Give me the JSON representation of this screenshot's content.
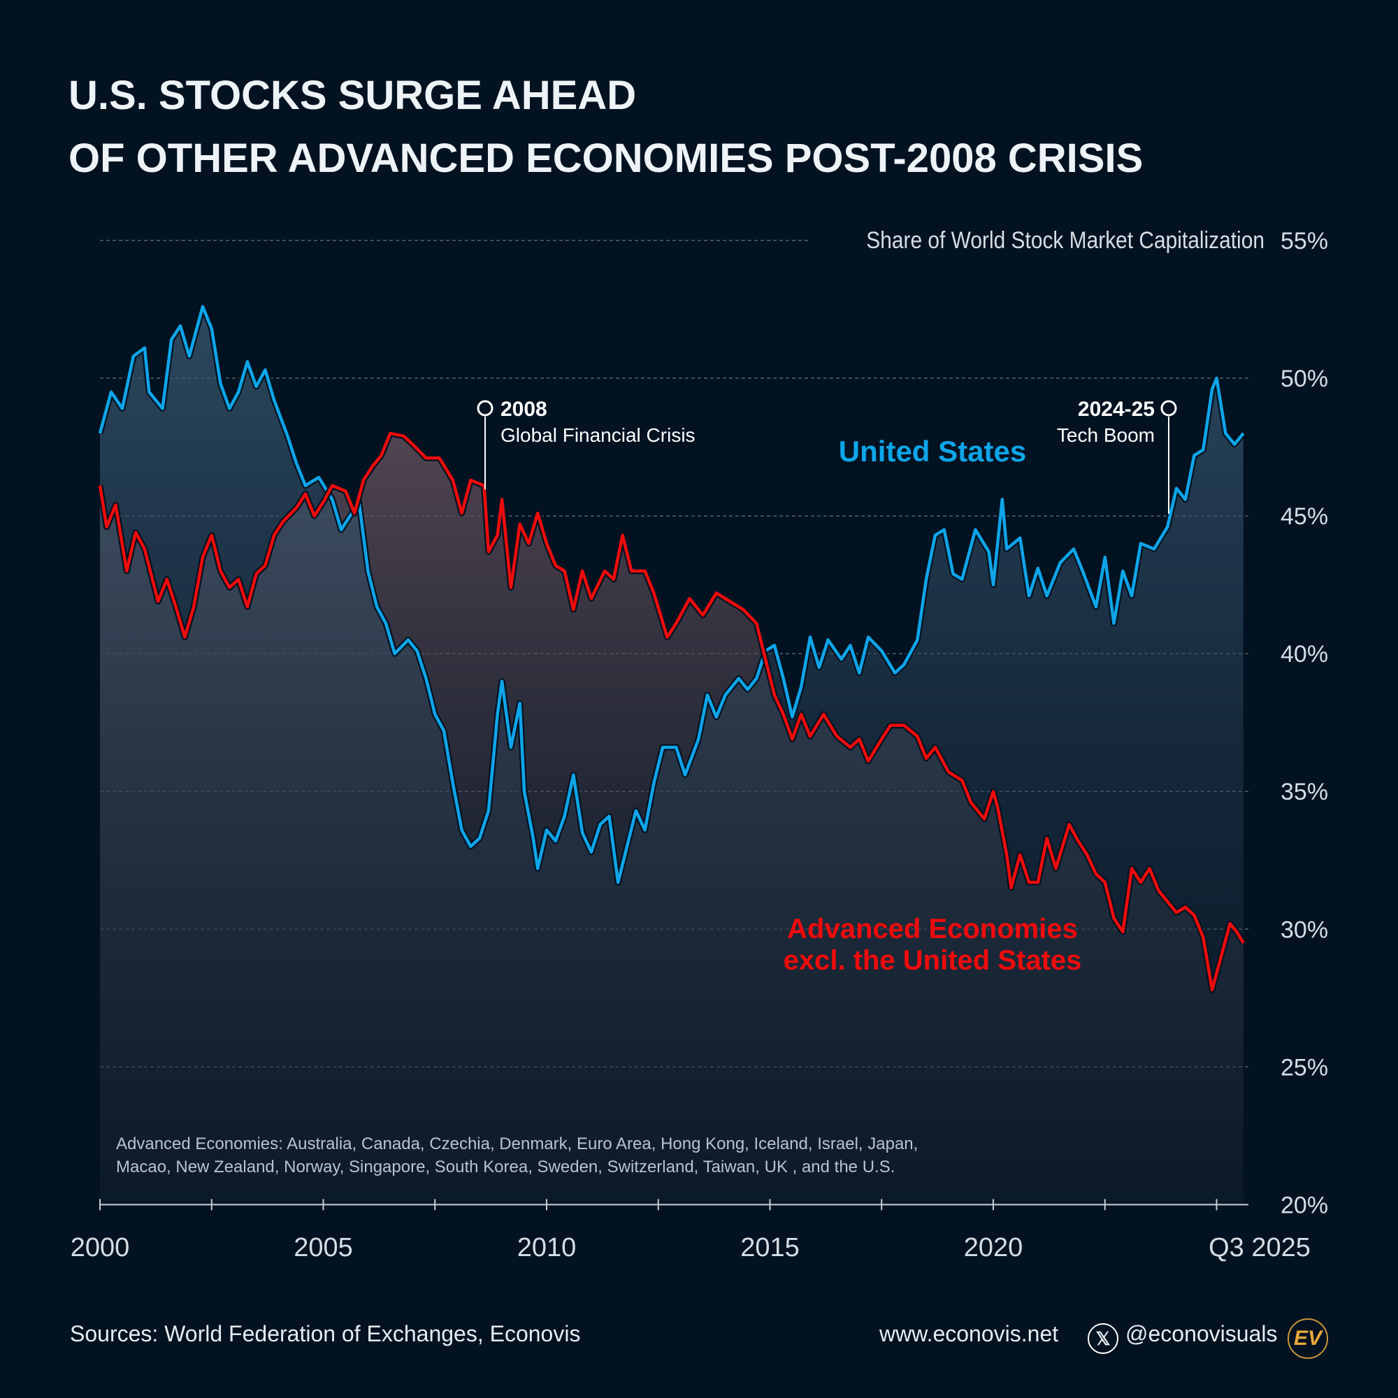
{
  "title": {
    "line1": "U.S. STOCKS SURGE AHEAD",
    "line2": "OF OTHER ADVANCED ECONOMIES POST-2008 CRISIS"
  },
  "chart_data": {
    "type": "line",
    "ylabel": "Share of World Stock Market Capitalization",
    "ylim": [
      20,
      55
    ],
    "y_ticks": [
      "20%",
      "25%",
      "30%",
      "35%",
      "40%",
      "45%",
      "50%",
      "55%"
    ],
    "x_range": [
      2000,
      2025.6
    ],
    "x_ticks": [
      "2000",
      "2005",
      "2010",
      "2015",
      "2020",
      "Q3 2025"
    ],
    "grid": true,
    "series": [
      {
        "name": "United States",
        "color": "#0ea5e9",
        "points": [
          [
            2000.0,
            48.0
          ],
          [
            2000.25,
            49.5
          ],
          [
            2000.5,
            48.9
          ],
          [
            2000.75,
            50.8
          ],
          [
            2001.0,
            51.1
          ],
          [
            2001.1,
            49.5
          ],
          [
            2001.4,
            48.9
          ],
          [
            2001.6,
            51.4
          ],
          [
            2001.8,
            51.9
          ],
          [
            2002.0,
            50.8
          ],
          [
            2002.3,
            52.6
          ],
          [
            2002.5,
            51.8
          ],
          [
            2002.7,
            49.8
          ],
          [
            2002.9,
            48.9
          ],
          [
            2003.1,
            49.5
          ],
          [
            2003.3,
            50.6
          ],
          [
            2003.5,
            49.7
          ],
          [
            2003.7,
            50.3
          ],
          [
            2003.9,
            49.2
          ],
          [
            2004.2,
            47.9
          ],
          [
            2004.4,
            46.9
          ],
          [
            2004.6,
            46.1
          ],
          [
            2004.9,
            46.4
          ],
          [
            2005.2,
            45.6
          ],
          [
            2005.4,
            44.5
          ],
          [
            2005.6,
            45.0
          ],
          [
            2005.8,
            45.5
          ],
          [
            2006.0,
            43.0
          ],
          [
            2006.2,
            41.7
          ],
          [
            2006.4,
            41.1
          ],
          [
            2006.6,
            40.0
          ],
          [
            2006.9,
            40.5
          ],
          [
            2007.1,
            40.1
          ],
          [
            2007.3,
            39.1
          ],
          [
            2007.5,
            37.8
          ],
          [
            2007.7,
            37.2
          ],
          [
            2007.9,
            35.3
          ],
          [
            2008.1,
            33.6
          ],
          [
            2008.3,
            33.0
          ],
          [
            2008.5,
            33.3
          ],
          [
            2008.7,
            34.3
          ],
          [
            2008.9,
            37.8
          ],
          [
            2009.0,
            39.0
          ],
          [
            2009.2,
            36.6
          ],
          [
            2009.4,
            38.2
          ],
          [
            2009.5,
            35.0
          ],
          [
            2009.7,
            33.3
          ],
          [
            2009.8,
            32.2
          ],
          [
            2010.0,
            33.6
          ],
          [
            2010.2,
            33.2
          ],
          [
            2010.4,
            34.1
          ],
          [
            2010.6,
            35.6
          ],
          [
            2010.8,
            33.5
          ],
          [
            2011.0,
            32.8
          ],
          [
            2011.2,
            33.8
          ],
          [
            2011.4,
            34.1
          ],
          [
            2011.6,
            31.7
          ],
          [
            2011.8,
            33.0
          ],
          [
            2012.0,
            34.3
          ],
          [
            2012.2,
            33.6
          ],
          [
            2012.4,
            35.3
          ],
          [
            2012.6,
            36.6
          ],
          [
            2012.9,
            36.6
          ],
          [
            2013.1,
            35.6
          ],
          [
            2013.4,
            36.9
          ],
          [
            2013.6,
            38.5
          ],
          [
            2013.8,
            37.7
          ],
          [
            2014.0,
            38.5
          ],
          [
            2014.3,
            39.1
          ],
          [
            2014.5,
            38.7
          ],
          [
            2014.7,
            39.1
          ],
          [
            2014.9,
            40.1
          ],
          [
            2015.1,
            40.3
          ],
          [
            2015.3,
            39.1
          ],
          [
            2015.5,
            37.7
          ],
          [
            2015.7,
            38.8
          ],
          [
            2015.9,
            40.6
          ],
          [
            2016.1,
            39.5
          ],
          [
            2016.3,
            40.5
          ],
          [
            2016.6,
            39.8
          ],
          [
            2016.8,
            40.3
          ],
          [
            2017.0,
            39.3
          ],
          [
            2017.2,
            40.6
          ],
          [
            2017.5,
            40.1
          ],
          [
            2017.8,
            39.3
          ],
          [
            2018.0,
            39.6
          ],
          [
            2018.3,
            40.5
          ],
          [
            2018.5,
            42.7
          ],
          [
            2018.7,
            44.3
          ],
          [
            2018.9,
            44.5
          ],
          [
            2019.1,
            42.9
          ],
          [
            2019.3,
            42.7
          ],
          [
            2019.6,
            44.5
          ],
          [
            2019.9,
            43.7
          ],
          [
            2020.0,
            42.5
          ],
          [
            2020.2,
            45.6
          ],
          [
            2020.3,
            43.8
          ],
          [
            2020.6,
            44.2
          ],
          [
            2020.8,
            42.1
          ],
          [
            2021.0,
            43.1
          ],
          [
            2021.2,
            42.1
          ],
          [
            2021.5,
            43.3
          ],
          [
            2021.8,
            43.8
          ],
          [
            2022.0,
            43.0
          ],
          [
            2022.3,
            41.7
          ],
          [
            2022.5,
            43.5
          ],
          [
            2022.7,
            41.1
          ],
          [
            2022.9,
            43.0
          ],
          [
            2023.1,
            42.1
          ],
          [
            2023.3,
            44.0
          ],
          [
            2023.6,
            43.8
          ],
          [
            2023.9,
            44.6
          ],
          [
            2024.1,
            46.0
          ],
          [
            2024.3,
            45.6
          ],
          [
            2024.5,
            47.2
          ],
          [
            2024.7,
            47.4
          ],
          [
            2024.9,
            49.6
          ],
          [
            2025.0,
            50.0
          ],
          [
            2025.2,
            48.0
          ],
          [
            2025.4,
            47.6
          ],
          [
            2025.6,
            48.0
          ]
        ]
      },
      {
        "name": "Advanced Economies excl. the United States",
        "color": "#ef0c0c",
        "points": [
          [
            2000.0,
            46.1
          ],
          [
            2000.15,
            44.6
          ],
          [
            2000.35,
            45.4
          ],
          [
            2000.6,
            43.0
          ],
          [
            2000.8,
            44.4
          ],
          [
            2001.0,
            43.8
          ],
          [
            2001.3,
            41.9
          ],
          [
            2001.5,
            42.7
          ],
          [
            2001.7,
            41.7
          ],
          [
            2001.9,
            40.6
          ],
          [
            2002.1,
            41.7
          ],
          [
            2002.3,
            43.5
          ],
          [
            2002.5,
            44.3
          ],
          [
            2002.7,
            43.0
          ],
          [
            2002.9,
            42.4
          ],
          [
            2003.1,
            42.7
          ],
          [
            2003.3,
            41.7
          ],
          [
            2003.5,
            42.9
          ],
          [
            2003.7,
            43.2
          ],
          [
            2003.9,
            44.3
          ],
          [
            2004.1,
            44.8
          ],
          [
            2004.4,
            45.3
          ],
          [
            2004.6,
            45.8
          ],
          [
            2004.8,
            45.0
          ],
          [
            2005.0,
            45.5
          ],
          [
            2005.2,
            46.1
          ],
          [
            2005.5,
            45.9
          ],
          [
            2005.7,
            45.1
          ],
          [
            2005.9,
            46.3
          ],
          [
            2006.1,
            46.8
          ],
          [
            2006.3,
            47.2
          ],
          [
            2006.5,
            48.0
          ],
          [
            2006.8,
            47.9
          ],
          [
            2007.0,
            47.6
          ],
          [
            2007.3,
            47.1
          ],
          [
            2007.6,
            47.1
          ],
          [
            2007.9,
            46.3
          ],
          [
            2008.1,
            45.1
          ],
          [
            2008.3,
            46.3
          ],
          [
            2008.6,
            46.1
          ],
          [
            2008.7,
            43.7
          ],
          [
            2008.9,
            44.3
          ],
          [
            2009.0,
            45.6
          ],
          [
            2009.2,
            42.4
          ],
          [
            2009.4,
            44.7
          ],
          [
            2009.6,
            44.0
          ],
          [
            2009.8,
            45.1
          ],
          [
            2010.0,
            44.0
          ],
          [
            2010.2,
            43.2
          ],
          [
            2010.4,
            43.0
          ],
          [
            2010.6,
            41.6
          ],
          [
            2010.8,
            43.0
          ],
          [
            2011.0,
            42.0
          ],
          [
            2011.3,
            43.0
          ],
          [
            2011.5,
            42.7
          ],
          [
            2011.7,
            44.3
          ],
          [
            2011.9,
            43.0
          ],
          [
            2012.2,
            43.0
          ],
          [
            2012.4,
            42.2
          ],
          [
            2012.7,
            40.6
          ],
          [
            2012.9,
            41.1
          ],
          [
            2013.2,
            42.0
          ],
          [
            2013.5,
            41.4
          ],
          [
            2013.8,
            42.2
          ],
          [
            2014.1,
            41.9
          ],
          [
            2014.4,
            41.6
          ],
          [
            2014.7,
            41.1
          ],
          [
            2014.9,
            39.8
          ],
          [
            2015.1,
            38.5
          ],
          [
            2015.3,
            37.8
          ],
          [
            2015.5,
            36.9
          ],
          [
            2015.7,
            37.8
          ],
          [
            2015.9,
            37.0
          ],
          [
            2016.2,
            37.8
          ],
          [
            2016.5,
            37.0
          ],
          [
            2016.8,
            36.6
          ],
          [
            2017.0,
            36.9
          ],
          [
            2017.2,
            36.1
          ],
          [
            2017.5,
            36.9
          ],
          [
            2017.7,
            37.4
          ],
          [
            2018.0,
            37.4
          ],
          [
            2018.3,
            37.0
          ],
          [
            2018.5,
            36.2
          ],
          [
            2018.7,
            36.6
          ],
          [
            2019.0,
            35.7
          ],
          [
            2019.3,
            35.4
          ],
          [
            2019.5,
            34.6
          ],
          [
            2019.8,
            34.0
          ],
          [
            2020.0,
            35.0
          ],
          [
            2020.1,
            34.4
          ],
          [
            2020.3,
            32.7
          ],
          [
            2020.4,
            31.5
          ],
          [
            2020.6,
            32.7
          ],
          [
            2020.8,
            31.7
          ],
          [
            2021.0,
            31.7
          ],
          [
            2021.2,
            33.3
          ],
          [
            2021.4,
            32.2
          ],
          [
            2021.7,
            33.8
          ],
          [
            2021.9,
            33.2
          ],
          [
            2022.1,
            32.7
          ],
          [
            2022.3,
            32.0
          ],
          [
            2022.5,
            31.7
          ],
          [
            2022.7,
            30.4
          ],
          [
            2022.9,
            29.9
          ],
          [
            2023.1,
            32.2
          ],
          [
            2023.3,
            31.7
          ],
          [
            2023.5,
            32.2
          ],
          [
            2023.7,
            31.4
          ],
          [
            2023.9,
            31.0
          ],
          [
            2024.1,
            30.6
          ],
          [
            2024.3,
            30.8
          ],
          [
            2024.5,
            30.5
          ],
          [
            2024.7,
            29.7
          ],
          [
            2024.9,
            27.8
          ],
          [
            2025.1,
            29.0
          ],
          [
            2025.3,
            30.2
          ],
          [
            2025.45,
            29.9
          ],
          [
            2025.6,
            29.5
          ]
        ]
      }
    ],
    "annotations": [
      {
        "year_label": "2008",
        "text": "Global Financial Crisis"
      },
      {
        "year_label": "2024-25",
        "text": "Tech Boom"
      }
    ],
    "series_labels": {
      "us": "United States",
      "adv_line1": "Advanced Economies",
      "adv_line2": "excl. the United States"
    }
  },
  "note": {
    "line1": "Advanced Economies: Australia, Canada, Czechia, Denmark, Euro Area, Hong Kong, Iceland, Israel, Japan,",
    "line2": "Macao, New Zealand, Norway, Singapore, South Korea, Sweden, Switzerland, Taiwan, UK , and the U.S."
  },
  "footer": {
    "sources": "Sources: World Federation of Exchanges, Econovis",
    "website": "www.econovis.net",
    "handle": "@econovisuals",
    "x_icon": "x-logo-icon",
    "logo_text": "EV",
    "logo_color": "#e8a93a"
  }
}
